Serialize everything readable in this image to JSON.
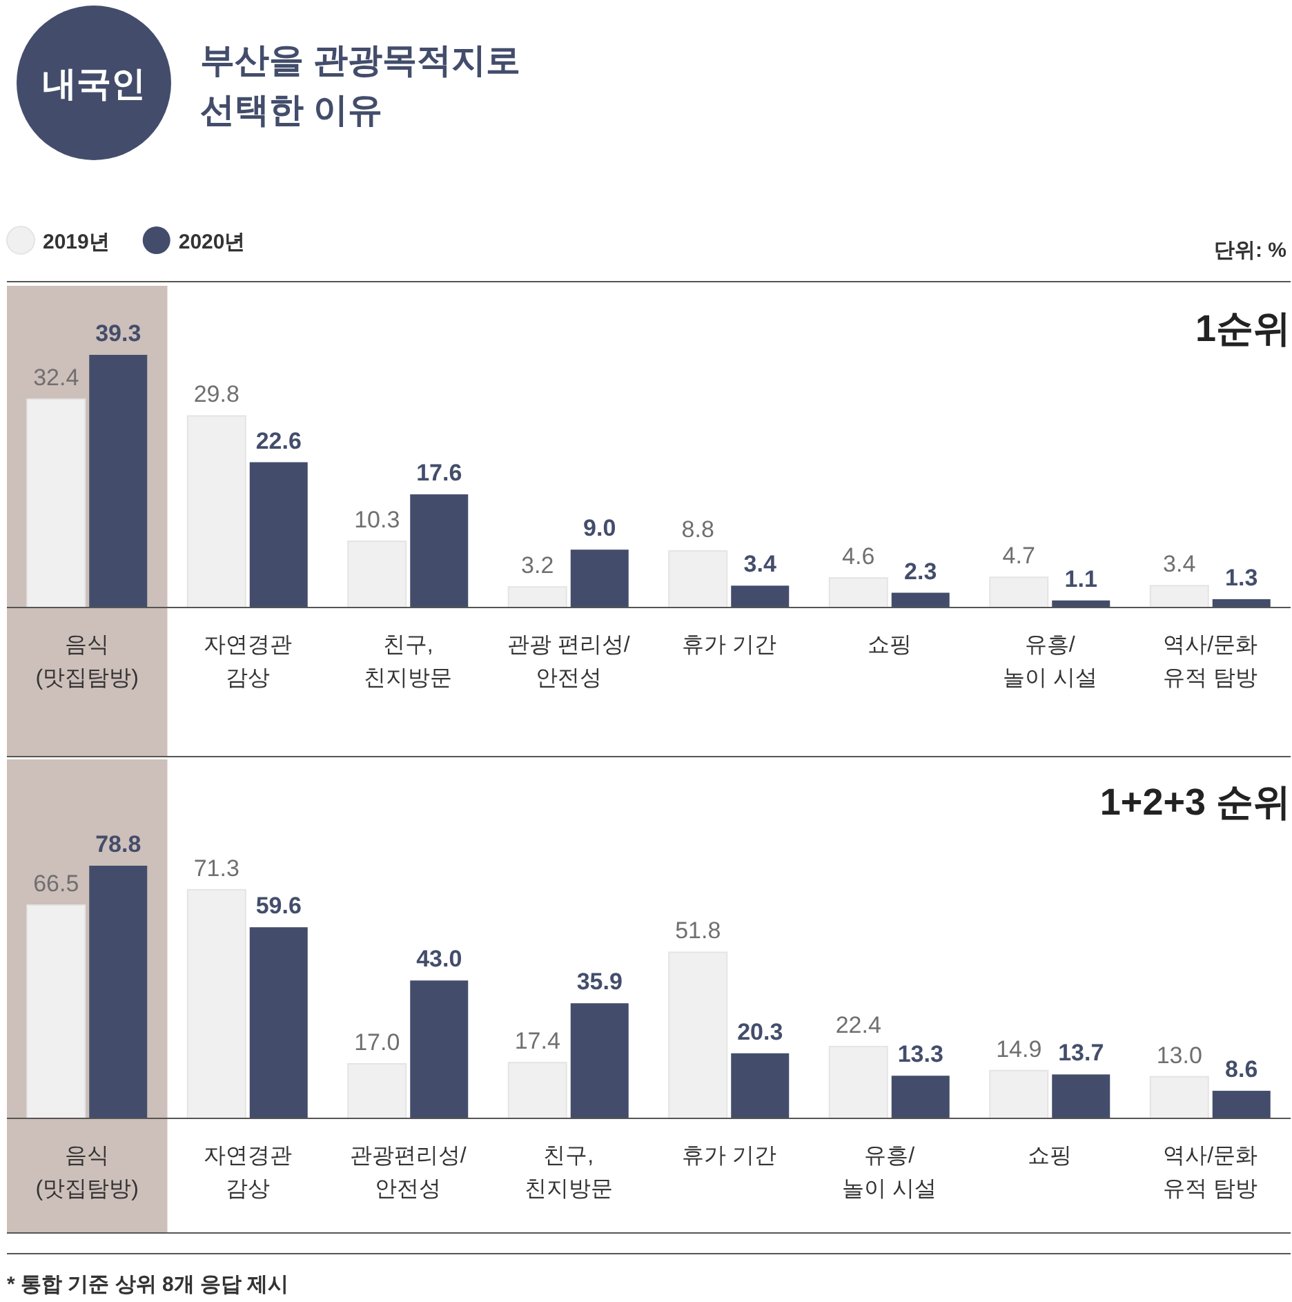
{
  "chart_data": [
    {
      "type": "bar",
      "title": "부산을 관광목적지로\n선택한 이유",
      "subtitle": "1순위",
      "categories": [
        "음식\n(맛집탐방)",
        "자연경관\n감상",
        "친구,\n친지방문",
        "관광 편리성/\n안전성",
        "휴가 기간",
        "쇼핑",
        "유흥/\n놀이 시설",
        "역사/문화\n유적 탐방"
      ],
      "series": [
        {
          "name": "2019년",
          "color": "#f0f0f0",
          "values": [
            32.4,
            29.8,
            10.3,
            3.2,
            8.8,
            4.6,
            4.7,
            3.4
          ],
          "value_labels": [
            "32.4",
            "29.8",
            "10.3",
            "3.2",
            "8.8",
            "4.6",
            "4.7",
            "3.4"
          ]
        },
        {
          "name": "2020년",
          "color": "#434d6b",
          "values": [
            39.3,
            22.6,
            17.6,
            9.0,
            3.4,
            2.3,
            1.1,
            1.3
          ],
          "value_labels": [
            "39.3",
            "22.6",
            "17.6",
            "9.0",
            "3.4",
            "2.3",
            "1.1",
            "1.3"
          ]
        }
      ],
      "legend": "top left",
      "bands": [
        {
          "axis": "x",
          "from": "음식\n(맛집탐방)",
          "to": "음식\n(맛집탐방)",
          "color": "#cdbfb9"
        }
      ],
      "annotations": [
        "내국인",
        "단위: %"
      ]
    },
    {
      "type": "bar",
      "title": "1+2+3 순위",
      "categories": [
        "음식\n(맛집탐방)",
        "자연경관\n감상",
        "관광편리성/\n안전성",
        "친구,\n친지방문",
        "휴가 기간",
        "유흥/\n놀이 시설",
        "쇼핑",
        "역사/문화\n유적 탐방"
      ],
      "series": [
        {
          "color": "#f0f0f0",
          "values": [
            66.5,
            71.3,
            17.0,
            17.4,
            51.8,
            22.4,
            14.9,
            13.0
          ],
          "value_labels": [
            "66.5",
            "71.3",
            "17.0",
            "17.4",
            "51.8",
            "22.4",
            "14.9",
            "13.0"
          ]
        },
        {
          "color": "#434d6b",
          "values": [
            78.8,
            59.6,
            43.0,
            35.9,
            20.3,
            13.3,
            13.7,
            8.6
          ],
          "value_labels": [
            "78.8",
            "59.6",
            "43.0",
            "35.9",
            "20.3",
            "13.3",
            "13.7",
            "8.6"
          ]
        }
      ],
      "bands": [
        {
          "axis": "x",
          "from": "음식\n(맛집탐방)",
          "to": "음식\n(맛집탐방)",
          "color": "#cdbfb9"
        }
      ],
      "annotations": [
        "* 통합 기준 상위 8개 응답 제시"
      ]
    }
  ]
}
